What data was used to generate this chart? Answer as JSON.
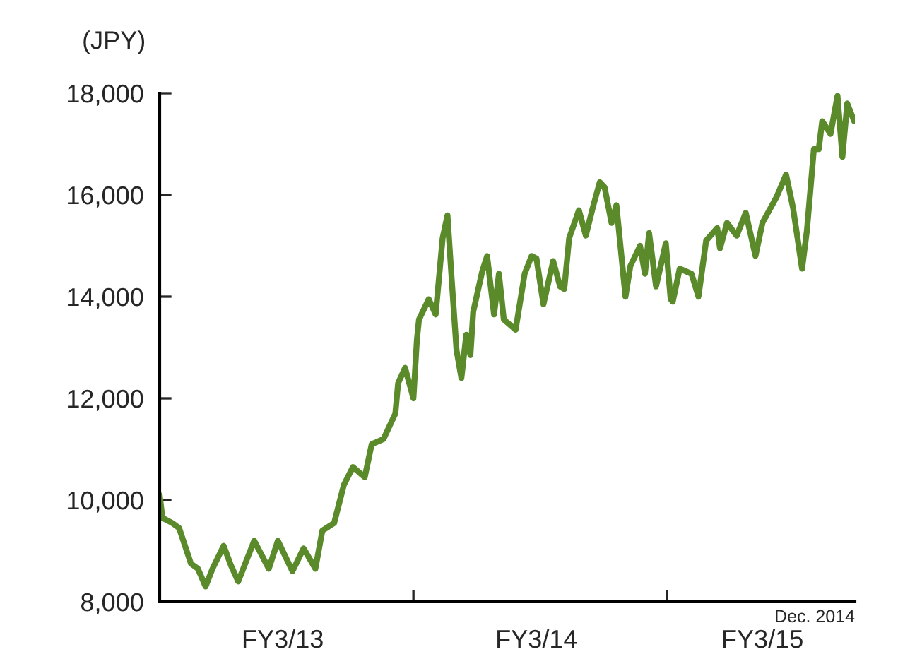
{
  "chart_data": {
    "type": "line",
    "ylabel": "(JPY)",
    "annotations": [
      "Dec. 2014"
    ],
    "x": [
      "2012-04-01",
      "2012-04-05",
      "2012-04-19",
      "2012-04-29",
      "2012-05-16",
      "2012-05-26",
      "2012-06-06",
      "2012-06-16",
      "2012-07-02",
      "2012-07-13",
      "2012-07-23",
      "2012-08-15",
      "2012-09-05",
      "2012-09-18",
      "2012-10-09",
      "2012-10-25",
      "2012-11-11",
      "2012-11-21",
      "2012-12-08",
      "2012-12-22",
      "2013-01-04",
      "2013-01-21",
      "2013-01-31",
      "2013-02-17",
      "2013-03-06",
      "2013-03-10",
      "2013-03-20",
      "2013-04-01",
      "2013-04-06",
      "2013-04-09",
      "2013-04-23",
      "2013-05-03",
      "2013-05-13",
      "2013-05-20",
      "2013-05-26",
      "2013-06-02",
      "2013-06-09",
      "2013-06-16",
      "2013-06-22",
      "2013-06-26",
      "2013-07-09",
      "2013-07-16",
      "2013-07-26",
      "2013-08-02",
      "2013-08-09",
      "2013-08-26",
      "2013-09-08",
      "2013-09-18",
      "2013-09-25",
      "2013-10-05",
      "2013-10-19",
      "2013-10-29",
      "2013-11-04",
      "2013-11-11",
      "2013-11-25",
      "2013-12-05",
      "2013-12-15",
      "2013-12-25",
      "2014-01-01",
      "2014-01-11",
      "2014-01-18",
      "2014-01-31",
      "2014-02-07",
      "2014-02-21",
      "2014-02-28",
      "2014-03-06",
      "2014-03-16",
      "2014-03-30",
      "2014-04-06",
      "2014-04-09",
      "2014-04-19",
      "2014-05-06",
      "2014-05-16",
      "2014-05-27",
      "2014-06-12",
      "2014-06-16",
      "2014-06-26",
      "2014-07-10",
      "2014-07-23",
      "2014-08-06",
      "2014-08-16",
      "2014-09-05",
      "2014-09-19",
      "2014-09-29",
      "2014-10-12",
      "2014-10-19",
      "2014-10-29",
      "2014-11-05",
      "2014-11-10",
      "2014-11-22",
      "2014-12-02",
      "2014-12-09",
      "2014-12-16",
      "2014-12-26"
    ],
    "series": [
      {
        "color": "#5a8a2a",
        "values": [
          10100,
          9650,
          9550,
          9450,
          8750,
          8650,
          8300,
          8650,
          9100,
          8700,
          8400,
          9200,
          8650,
          9200,
          8600,
          9050,
          8650,
          9400,
          9550,
          10300,
          10650,
          10450,
          11100,
          11200,
          11700,
          12300,
          12600,
          12000,
          13150,
          13550,
          13950,
          13650,
          15150,
          15600,
          14350,
          12950,
          12400,
          13250,
          12850,
          13700,
          14500,
          14800,
          13650,
          14450,
          13550,
          13350,
          14450,
          14800,
          14750,
          13850,
          14700,
          14200,
          14150,
          15150,
          15700,
          15200,
          15750,
          16250,
          16150,
          15450,
          15800,
          14000,
          14600,
          15000,
          14450,
          15250,
          14200,
          15050,
          13950,
          13900,
          14550,
          14450,
          14000,
          15100,
          15350,
          14950,
          15450,
          15200,
          15650,
          14800,
          15450,
          15950,
          16400,
          15750,
          14550,
          15300,
          16900,
          16900,
          17450,
          17200,
          17950,
          16750,
          17800,
          17450
        ]
      }
    ],
    "xlim": [
      "2012-04-01",
      "2014-12-27"
    ],
    "xticks": [
      {
        "value": "2012-09-25",
        "label": "FY3/13"
      },
      {
        "value": "2013-04-01",
        "label": null
      },
      {
        "value": "2013-09-25",
        "label": "FY3/14"
      },
      {
        "value": "2014-04-01",
        "label": null
      },
      {
        "value": "2014-08-16",
        "label": "FY3/15"
      }
    ],
    "ylim": [
      8000,
      18000
    ],
    "yticks": [
      {
        "value": 8000,
        "label": "8,000"
      },
      {
        "value": 10000,
        "label": "10,000"
      },
      {
        "value": 12000,
        "label": "12,000"
      },
      {
        "value": 14000,
        "label": "14,000"
      },
      {
        "value": 16000,
        "label": "16,000"
      },
      {
        "value": 18000,
        "label": "18,000"
      }
    ],
    "grid": false,
    "legend": false
  }
}
